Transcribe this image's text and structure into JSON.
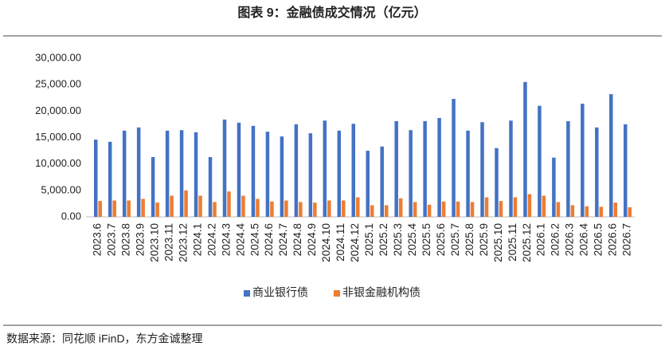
{
  "chart_data": {
    "type": "bar",
    "title": "图表 9：金融债成交情况（亿元）",
    "source": "数据来源：同花顺 iFinD，东方金诚整理",
    "categories": [
      "2023.6",
      "2023.7",
      "2023.8",
      "2023.9",
      "2023.10",
      "2023.11",
      "2023.12",
      "2024.1",
      "2024.2",
      "2024.3",
      "2024.4",
      "2024.5",
      "2024.6",
      "2024.7",
      "2024.8",
      "2024.9",
      "2024.10",
      "2024.11",
      "2024.12",
      "2025.1",
      "2025.2",
      "2025.3",
      "2025.4",
      "2025.5",
      "2025.6",
      "2025.7",
      "2025.8",
      "2025.9",
      "2025.10",
      "2025.11",
      "2025.12",
      "2026.1",
      "2026.2",
      "2026.3",
      "2026.4",
      "2026.5",
      "2026.6",
      "2026.7"
    ],
    "series": [
      {
        "name": "商业银行债",
        "color": "#4472c4",
        "values": [
          14600,
          14200,
          16300,
          16900,
          11300,
          16300,
          16400,
          16000,
          11300,
          18400,
          17800,
          17200,
          16100,
          15200,
          17500,
          15800,
          18200,
          16300,
          17600,
          12500,
          13300,
          18100,
          16400,
          18100,
          18700,
          22300,
          16300,
          17900,
          13000,
          18200,
          25500,
          21000,
          11200,
          18100,
          21400,
          16900,
          23200,
          17500
        ]
      },
      {
        "name": "非银金融机构债",
        "color": "#ed7d31",
        "values": [
          3000,
          3100,
          3100,
          3400,
          2700,
          4000,
          5000,
          4000,
          2800,
          4800,
          4000,
          3400,
          2900,
          3100,
          2800,
          2700,
          3100,
          3100,
          3700,
          2200,
          2200,
          3500,
          2800,
          2300,
          2900,
          2900,
          2800,
          3700,
          3000,
          3700,
          4300,
          4000,
          2800,
          2200,
          2000,
          1900,
          2700,
          1800
        ]
      }
    ],
    "ylim": [
      0,
      30000
    ],
    "yticks": [
      {
        "value": 0,
        "label": "0.00"
      },
      {
        "value": 5000,
        "label": "5,000.00"
      },
      {
        "value": 10000,
        "label": "10,000.00"
      },
      {
        "value": 15000,
        "label": "15,000.00"
      },
      {
        "value": 20000,
        "label": "20,000.00"
      },
      {
        "value": 25000,
        "label": "25,000.00"
      },
      {
        "value": 30000,
        "label": "30,000.00"
      }
    ],
    "grid": false,
    "legend": "bottom"
  }
}
